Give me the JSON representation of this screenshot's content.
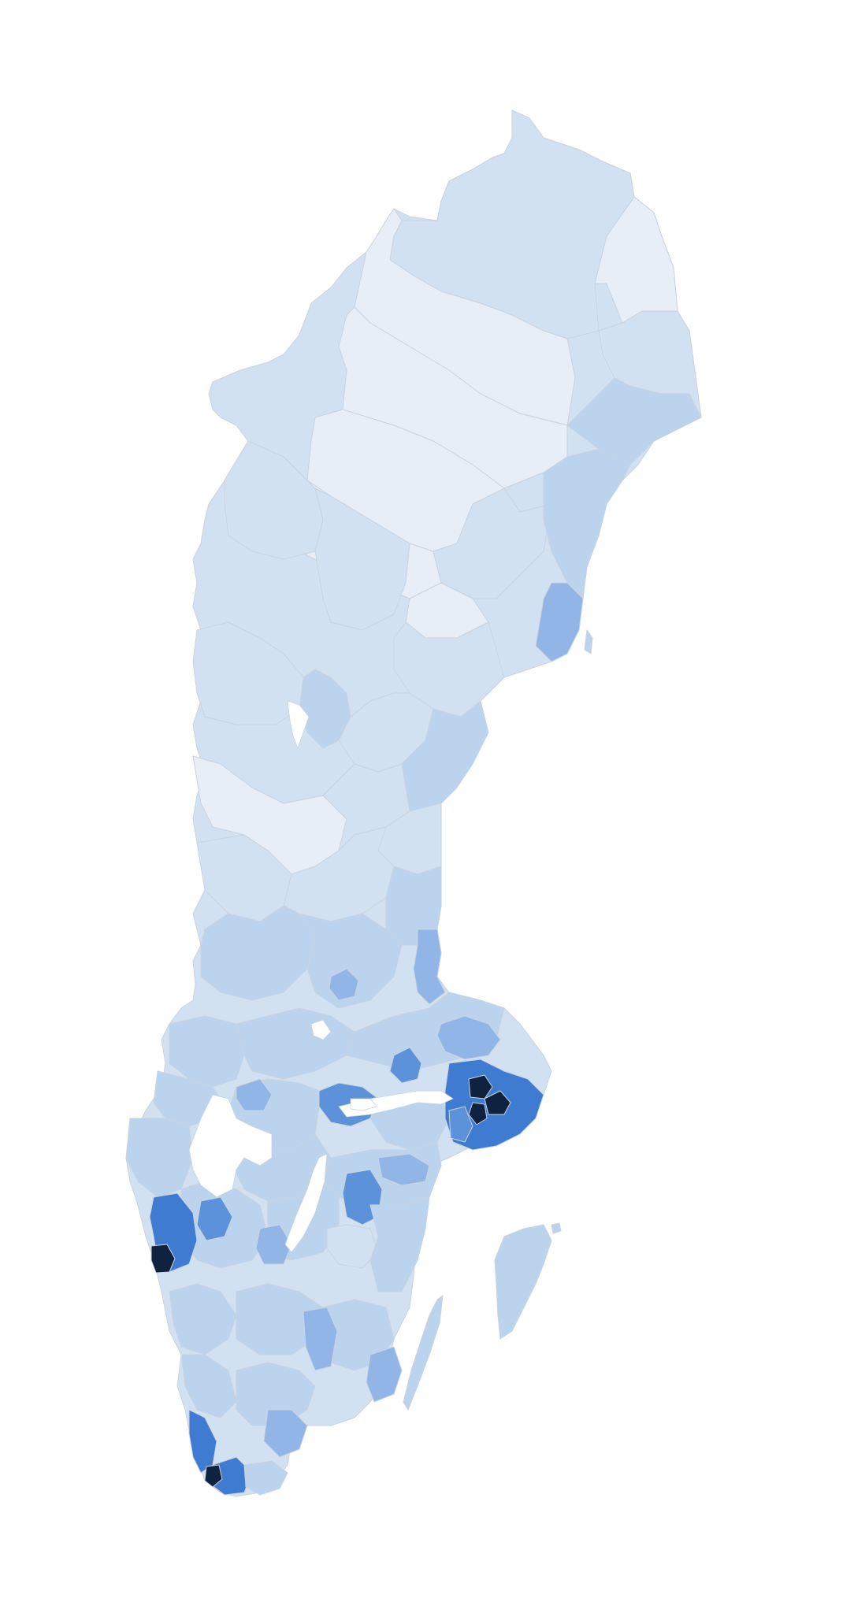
{
  "map": {
    "country": "",
    "legend_visible": false,
    "color_scale": {
      "lightest": "#e8eef7",
      "light": "#d2e1f2",
      "light_mid": "#bcd3ee",
      "mid": "#90b5e6",
      "strong": "#5b92da",
      "stronger": "#3f7bd0",
      "darkest": "#0f2340"
    },
    "border_color": "#c9d3df",
    "background": "#ffffff"
  }
}
